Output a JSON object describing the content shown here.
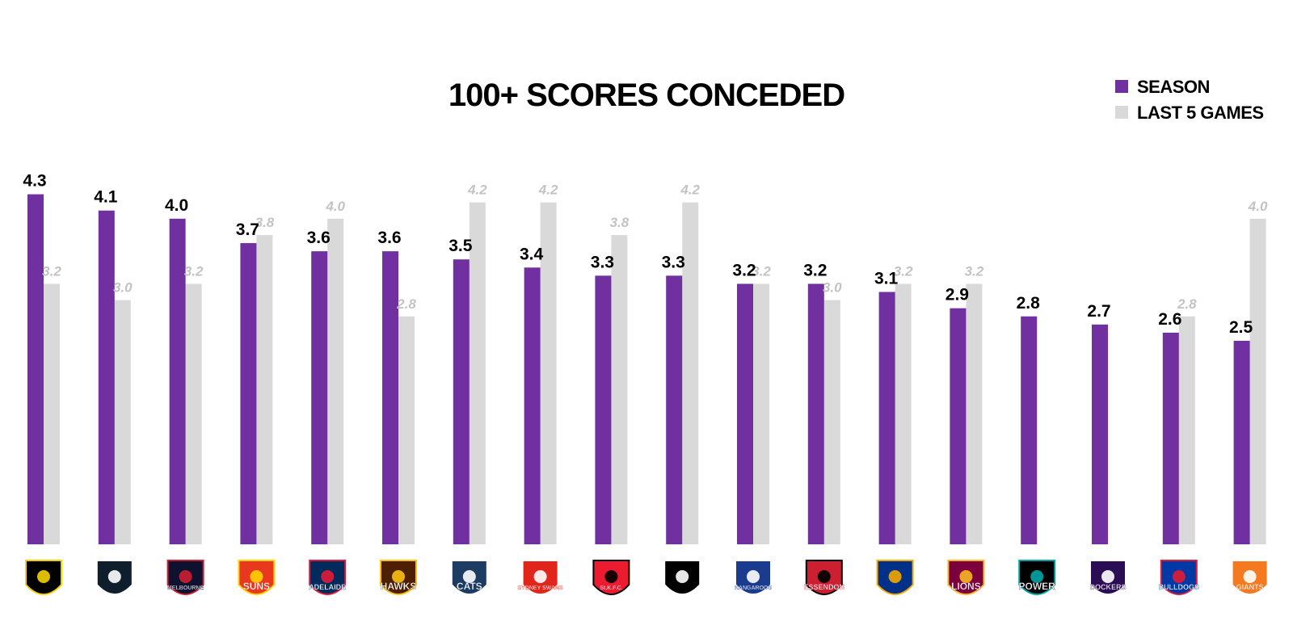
{
  "chart_data": {
    "type": "bar",
    "title": "100+ SCORES CONCEDED",
    "xlabel": "",
    "ylabel": "",
    "ylim": [
      0,
      4.5
    ],
    "grid": false,
    "legend_position": "top-right",
    "categories": [
      "Richmond",
      "Carlton",
      "Melbourne",
      "Gold Coast Suns",
      "Adelaide Crows",
      "Hawthorn Hawks",
      "Geelong Cats",
      "Sydney Swans",
      "St Kilda",
      "Collingwood",
      "North Melbourne Kangaroos",
      "Essendon",
      "West Coast Eagles",
      "Brisbane Lions",
      "Port Adelaide Power",
      "Fremantle Dockers",
      "Western Bulldogs",
      "GWS Giants"
    ],
    "series": [
      {
        "name": "SEASON",
        "color": "#7030a0",
        "values": [
          4.3,
          4.1,
          4.0,
          3.7,
          3.6,
          3.6,
          3.5,
          3.4,
          3.3,
          3.3,
          3.2,
          3.2,
          3.1,
          2.9,
          2.8,
          2.7,
          2.6,
          2.5
        ]
      },
      {
        "name": "LAST 5 GAMES",
        "color": "#d9d9d9",
        "values": [
          3.2,
          3.0,
          3.2,
          3.8,
          4.0,
          2.8,
          4.2,
          4.2,
          3.8,
          4.2,
          3.2,
          3.0,
          3.2,
          3.2,
          null,
          null,
          2.8,
          4.0
        ]
      }
    ],
    "season_labels": [
      "4.3",
      "4.1",
      "4.0",
      "3.7",
      "3.6",
      "3.6",
      "3.5",
      "3.4",
      "3.3",
      "3.3",
      "3.2",
      "3.2",
      "3.1",
      "2.9",
      "2.8",
      "2.7",
      "2.6",
      "2.5"
    ],
    "last5_labels": [
      "3.2",
      "3.0",
      "3.2",
      "3.8",
      "4.0",
      "2.8",
      "4.2",
      "4.2",
      "3.8",
      "4.2",
      "3.2",
      "3.0",
      "3.2",
      "3.2",
      null,
      null,
      "2.8",
      "4.0"
    ]
  },
  "logos": [
    {
      "name": "richmond-logo",
      "text": "",
      "color": "#000000",
      "accent": "#f5d000"
    },
    {
      "name": "carlton-logo",
      "text": "",
      "color": "#0e1e2d",
      "accent": "#ffffff"
    },
    {
      "name": "melbourne-logo",
      "text": "MELBOURNE",
      "color": "#0f1131",
      "accent": "#cc2031"
    },
    {
      "name": "gold-coast-suns-logo",
      "text": "SUNS",
      "color": "#e8381d",
      "accent": "#ffd200"
    },
    {
      "name": "adelaide-crows-logo",
      "text": "ADELAIDE",
      "color": "#002b5c",
      "accent": "#e21937"
    },
    {
      "name": "hawthorn-hawks-logo",
      "text": "HAWKS",
      "color": "#4d2004",
      "accent": "#fbbf15"
    },
    {
      "name": "geelong-cats-logo",
      "text": "CATS",
      "color": "#1c3c63",
      "accent": "#ffffff"
    },
    {
      "name": "sydney-swans-logo",
      "text": "SYDNEY SWANS",
      "color": "#e1251b",
      "accent": "#ffffff"
    },
    {
      "name": "st-kilda-logo",
      "text": "St.K.F.C.",
      "color": "#ed1b2f",
      "accent": "#000000"
    },
    {
      "name": "collingwood-logo",
      "text": "",
      "color": "#000000",
      "accent": "#ffffff"
    },
    {
      "name": "kangaroos-logo",
      "text": "KANGAROOS",
      "color": "#1a3b8e",
      "accent": "#ffffff"
    },
    {
      "name": "essendon-logo",
      "text": "ESSENDON",
      "color": "#cc2031",
      "accent": "#000000"
    },
    {
      "name": "west-coast-eagles-logo",
      "text": "",
      "color": "#003087",
      "accent": "#f2a900"
    },
    {
      "name": "brisbane-lions-logo",
      "text": "LIONS",
      "color": "#7c003e",
      "accent": "#f6b623"
    },
    {
      "name": "port-adelaide-power-logo",
      "text": "POWER",
      "color": "#000000",
      "accent": "#00a6a9"
    },
    {
      "name": "fremantle-dockers-logo",
      "text": "DOCKERS",
      "color": "#2a0d54",
      "accent": "#ffffff"
    },
    {
      "name": "western-bulldogs-logo",
      "text": "BULLDOGS",
      "color": "#0039a6",
      "accent": "#e21937"
    },
    {
      "name": "gws-giants-logo",
      "text": "GIANTS",
      "color": "#f47920",
      "accent": "#ffffff"
    }
  ]
}
